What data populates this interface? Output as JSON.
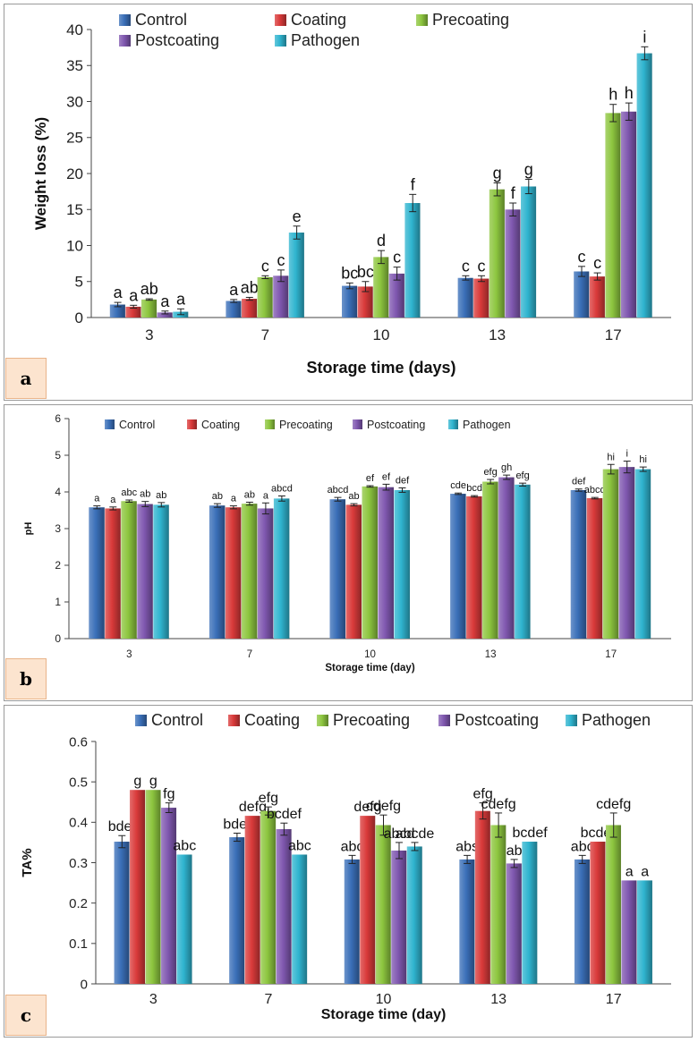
{
  "colors": {
    "Control": "#3a6fb8",
    "Coating": "#d93a3a",
    "Precoating": "#8dc63f",
    "Postcoating": "#8058b0",
    "Pathogen": "#2fb4cf"
  },
  "panels": [
    {
      "label": "a"
    },
    {
      "label": "b"
    },
    {
      "label": "c"
    }
  ],
  "chart_data": [
    {
      "type": "bar",
      "panel": "a",
      "title": "",
      "xlabel": "Storage time (days)",
      "ylabel": "Weight loss (%)",
      "ylim": [
        0,
        40
      ],
      "yticks": [
        "0",
        "5",
        "10",
        "15",
        "20",
        "25",
        "30",
        "35",
        "40"
      ],
      "categories": [
        "3",
        "7",
        "10",
        "13",
        "17"
      ],
      "legend": "top",
      "series": [
        {
          "name": "Control",
          "values": [
            1.8,
            2.3,
            4.4,
            5.5,
            6.4
          ],
          "errors": [
            0.3,
            0.2,
            0.4,
            0.3,
            0.7
          ],
          "letters": [
            "a",
            "a",
            "bc",
            "c",
            "c"
          ]
        },
        {
          "name": "Coating",
          "values": [
            1.5,
            2.6,
            4.3,
            5.4,
            5.7
          ],
          "errors": [
            0.2,
            0.2,
            0.7,
            0.4,
            0.5
          ],
          "letters": [
            "a",
            "ab",
            "bc",
            "c",
            "c"
          ]
        },
        {
          "name": "Precoating",
          "values": [
            2.5,
            5.6,
            8.4,
            17.8,
            28.4
          ],
          "errors": [
            0.1,
            0.2,
            0.9,
            0.9,
            1.2
          ],
          "letters": [
            "ab",
            "c",
            "d",
            "g",
            "h"
          ]
        },
        {
          "name": "Postcoating",
          "values": [
            0.7,
            5.8,
            6.1,
            15.0,
            28.6
          ],
          "errors": [
            0.2,
            0.8,
            0.9,
            0.9,
            1.2
          ],
          "letters": [
            "a",
            "c",
            "c",
            "f",
            "h"
          ]
        },
        {
          "name": "Pathogen",
          "values": [
            0.8,
            11.8,
            15.9,
            18.2,
            36.7
          ],
          "errors": [
            0.4,
            0.9,
            1.2,
            1.0,
            0.9
          ],
          "letters": [
            "a",
            "e",
            "f",
            "g",
            "i"
          ]
        }
      ]
    },
    {
      "type": "bar",
      "panel": "b",
      "title": "",
      "xlabel": "Storage  time (day)",
      "ylabel": "pH",
      "ylim": [
        0,
        6
      ],
      "yticks": [
        "0",
        "1",
        "2",
        "3",
        "4",
        "5",
        "6"
      ],
      "categories": [
        "3",
        "7",
        "10",
        "13",
        "17"
      ],
      "legend": "top",
      "series": [
        {
          "name": "Control",
          "values": [
            3.58,
            3.63,
            3.8,
            3.95,
            4.05
          ],
          "errors": [
            0.04,
            0.05,
            0.05,
            0.02,
            0.03
          ],
          "letters": [
            "a",
            "ab",
            "abcd",
            "cde",
            "def"
          ]
        },
        {
          "name": "Coating",
          "values": [
            3.55,
            3.58,
            3.65,
            3.88,
            3.83
          ],
          "errors": [
            0.04,
            0.04,
            0.03,
            0.02,
            0.02
          ],
          "letters": [
            "a",
            "a",
            "ab",
            "bcd",
            "abcd"
          ]
        },
        {
          "name": "Precoating",
          "values": [
            3.75,
            3.68,
            4.15,
            4.28,
            4.62
          ],
          "errors": [
            0.03,
            0.04,
            0.02,
            0.06,
            0.13
          ],
          "letters": [
            "abc",
            "ab",
            "ef",
            "efg",
            "hi"
          ]
        },
        {
          "name": "Postcoating",
          "values": [
            3.67,
            3.55,
            4.13,
            4.4,
            4.68
          ],
          "errors": [
            0.07,
            0.15,
            0.08,
            0.06,
            0.16
          ],
          "letters": [
            "ab",
            "a",
            "ef",
            "gh",
            "i"
          ]
        },
        {
          "name": "Pathogen",
          "values": [
            3.65,
            3.82,
            4.05,
            4.2,
            4.62
          ],
          "errors": [
            0.06,
            0.07,
            0.06,
            0.04,
            0.06
          ],
          "letters": [
            "ab",
            "abcd",
            "def",
            "efg",
            "hi"
          ]
        }
      ]
    },
    {
      "type": "bar",
      "panel": "c",
      "title": "",
      "xlabel": "Storage time (day)",
      "ylabel": "TA%",
      "ylim": [
        0,
        0.6
      ],
      "yticks": [
        "0",
        "0.1",
        "0.2",
        "0.3",
        "0.4",
        "0.5",
        "0.6"
      ],
      "categories": [
        "3",
        "7",
        "10",
        "13",
        "17"
      ],
      "legend": "top",
      "series": [
        {
          "name": "Control",
          "values": [
            0.352,
            0.363,
            0.308,
            0.308,
            0.308
          ],
          "errors": [
            0.015,
            0.01,
            0.01,
            0.01,
            0.01
          ],
          "letters": [
            "bdef",
            "bdef",
            "abc",
            "abs",
            "abc"
          ]
        },
        {
          "name": "Coating",
          "values": [
            0.48,
            0.416,
            0.416,
            0.428,
            0.352
          ],
          "errors": [
            0,
            0,
            0,
            0.02,
            0
          ],
          "letters": [
            "g",
            "defg",
            "defg",
            "efg",
            "bcdef"
          ]
        },
        {
          "name": "Precoating",
          "values": [
            0.48,
            0.428,
            0.393,
            0.393,
            0.393
          ],
          "errors": [
            0,
            0.01,
            0.025,
            0.03,
            0.03
          ],
          "letters": [
            "g",
            "efg",
            "cdefg",
            "cdefg",
            "cdefg"
          ]
        },
        {
          "name": "Postcoating",
          "values": [
            0.436,
            0.383,
            0.33,
            0.298,
            0.256
          ],
          "errors": [
            0.012,
            0.015,
            0.02,
            0.01,
            0
          ],
          "letters": [
            "fg",
            "bcdef",
            "abcd",
            "ab",
            "a"
          ]
        },
        {
          "name": "Pathogen",
          "values": [
            0.32,
            0.32,
            0.34,
            0.352,
            0.256
          ],
          "errors": [
            0,
            0,
            0.01,
            0,
            0
          ],
          "letters": [
            "abc",
            "abc",
            "abcde",
            "bcdef",
            "a"
          ]
        }
      ]
    }
  ]
}
